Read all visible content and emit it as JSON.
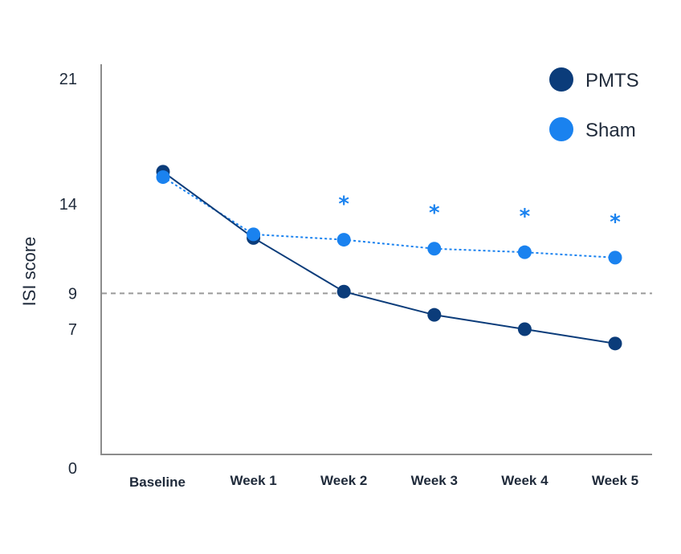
{
  "chart_data": {
    "type": "line",
    "title": "",
    "xlabel": "",
    "ylabel": "ISI score",
    "categories": [
      "Baseline",
      "Week 1",
      "Week 2",
      "Week 3",
      "Week 4",
      "Week 5"
    ],
    "yticks": [
      0,
      7,
      9,
      14,
      21
    ],
    "ylim": [
      0,
      21
    ],
    "reference_line": {
      "value": 9,
      "style": "dashed",
      "color": "#9a9a9a"
    },
    "significance_marker": "*",
    "significant_at": [
      "Week 2",
      "Week 3",
      "Week 4",
      "Week 5"
    ],
    "series": [
      {
        "name": "PMTS",
        "color": "#0b3c7a",
        "line_style": "solid",
        "values": [
          15.8,
          12.1,
          9.1,
          7.8,
          7.0,
          6.2
        ]
      },
      {
        "name": "Sham",
        "color": "#1a82ef",
        "line_style": "dotted",
        "values": [
          15.5,
          12.3,
          12.0,
          11.5,
          11.3,
          11.0
        ]
      }
    ],
    "legend": "top-right"
  }
}
